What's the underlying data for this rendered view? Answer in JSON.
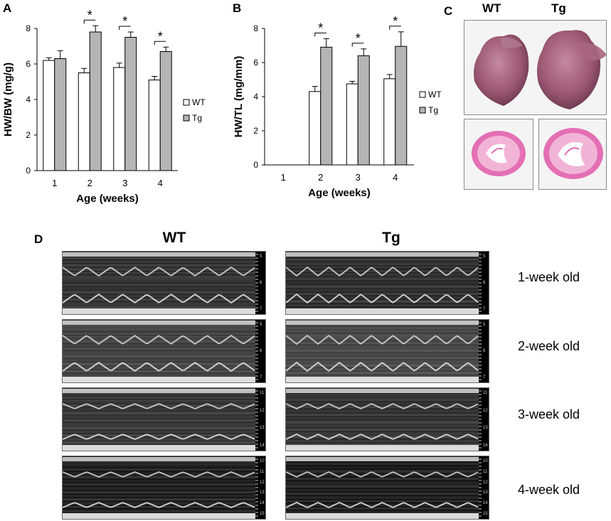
{
  "panels": {
    "a": "A",
    "b": "B",
    "c": "C",
    "d": "D"
  },
  "colors": {
    "wt_fill": "#ffffff",
    "tg_fill": "#b5b5b5",
    "stroke": "#000000"
  },
  "chart_data": [
    {
      "type": "bar",
      "panel": "A",
      "ylabel": "HW/BW (mg/g)",
      "xlabel": "Age (weeks)",
      "categories": [
        "1",
        "2",
        "3",
        "4"
      ],
      "ylim": [
        0,
        8
      ],
      "yticks": [
        "0",
        "2",
        "4",
        "6",
        "8"
      ],
      "series": [
        {
          "name": "WT",
          "values": [
            6.2,
            5.5,
            5.8,
            5.1
          ],
          "errors": [
            0.15,
            0.25,
            0.25,
            0.2
          ]
        },
        {
          "name": "Tg",
          "values": [
            6.3,
            7.8,
            7.5,
            6.7
          ],
          "errors": [
            0.45,
            0.35,
            0.3,
            0.25
          ]
        }
      ],
      "significance": [
        "",
        "*",
        "*",
        "*"
      ],
      "legend": "right"
    },
    {
      "type": "bar",
      "panel": "B",
      "ylabel": "HW/TL (mg/mm)",
      "xlabel": "Age (weeks)",
      "categories": [
        "1",
        "2",
        "3",
        "4"
      ],
      "ylim": [
        0,
        8
      ],
      "yticks": [
        "0",
        "2",
        "4",
        "6",
        "8"
      ],
      "series": [
        {
          "name": "WT",
          "values": [
            null,
            4.3,
            4.75,
            5.05
          ],
          "errors": [
            0,
            0.3,
            0.15,
            0.25
          ]
        },
        {
          "name": "Tg",
          "values": [
            null,
            6.9,
            6.4,
            6.95
          ],
          "errors": [
            0,
            0.5,
            0.4,
            0.85
          ]
        }
      ],
      "significance": [
        "",
        "*",
        "*",
        "*"
      ],
      "legend": "right"
    }
  ],
  "heart": {
    "wt_label": "WT",
    "tg_label": "Tg"
  },
  "echo": {
    "wt_label": "WT",
    "tg_label": "Tg",
    "rows": [
      {
        "label": "1-week old",
        "scale": [
          "5",
          "6",
          "7"
        ]
      },
      {
        "label": "2-week old",
        "scale": [
          "5",
          "6",
          "7"
        ]
      },
      {
        "label": "3-week old",
        "scale": [
          "11",
          "12",
          "13",
          "14"
        ]
      },
      {
        "label": "4-week old",
        "scale": [
          "10",
          "11",
          "12",
          "13",
          "14",
          "15"
        ]
      }
    ]
  }
}
